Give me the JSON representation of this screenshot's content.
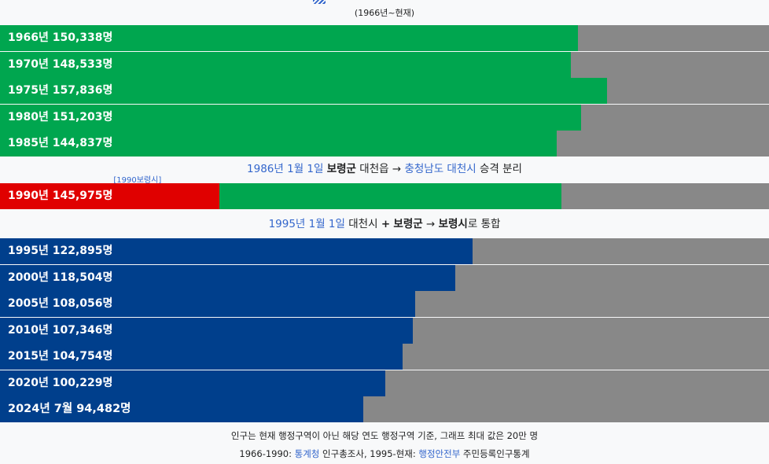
{
  "subtitle": "(1966년~현재)",
  "colors": {
    "green": "#00a64f",
    "red": "#e00000",
    "blue": "#003f8c",
    "remainder": "#888888",
    "link": "#3366cc"
  },
  "events": {
    "split": {
      "date": "1986년 1월 1일",
      "county": "보령군",
      "town": "대천읍",
      "arrow": "→",
      "province_city": "충청남도 대천시",
      "suffix": "승격 분리"
    },
    "merge": {
      "date": "1995년 1월 1일",
      "city_a": "대천시",
      "plus": "+",
      "county": "보령군",
      "arrow": "→",
      "new_city": "보령시",
      "suffix": "로 통합"
    }
  },
  "note_ref_1990": "[1990보령시]",
  "footnotes": {
    "line1": "인구는 현재 행정구역이 아닌 해당 연도 행정구역 기준, 그래프 최대 값은 20만 명",
    "line2_prefix": "1966-1990: ",
    "line2_link1": "통계청",
    "line2_mid": " 인구총조사, 1995-현재: ",
    "line2_link2": "행정안전부",
    "line2_suffix": " 주민등록인구통계"
  },
  "chart_data": {
    "type": "bar",
    "orientation": "horizontal",
    "xlim": [
      0,
      200000
    ],
    "bars": [
      {
        "label": "1966년 150,338명",
        "value": 150338,
        "color": "green"
      },
      {
        "label": "1970년 148,533명",
        "value": 148533,
        "color": "green"
      },
      {
        "label": "1975년 157,836명",
        "value": 157836,
        "color": "green"
      },
      {
        "label": "1980년 151,203명",
        "value": 151203,
        "color": "green"
      },
      {
        "label": "1985년 144,837명",
        "value": 144837,
        "color": "green"
      },
      {
        "label": "1990년 145,975명",
        "value": 145975,
        "color": "green",
        "secondary_value": 57000,
        "secondary_color": "red"
      },
      {
        "label": "1995년 122,895명",
        "value": 122895,
        "color": "blue"
      },
      {
        "label": "2000년 118,504명",
        "value": 118504,
        "color": "blue"
      },
      {
        "label": "2005년 108,056명",
        "value": 108056,
        "color": "blue"
      },
      {
        "label": "2010년 107,346명",
        "value": 107346,
        "color": "blue"
      },
      {
        "label": "2015년 104,754명",
        "value": 104754,
        "color": "blue"
      },
      {
        "label": "2020년 100,229명",
        "value": 100229,
        "color": "blue"
      },
      {
        "label": "2024년 7월 94,482명",
        "value": 94482,
        "color": "blue",
        "bold": true
      }
    ]
  }
}
